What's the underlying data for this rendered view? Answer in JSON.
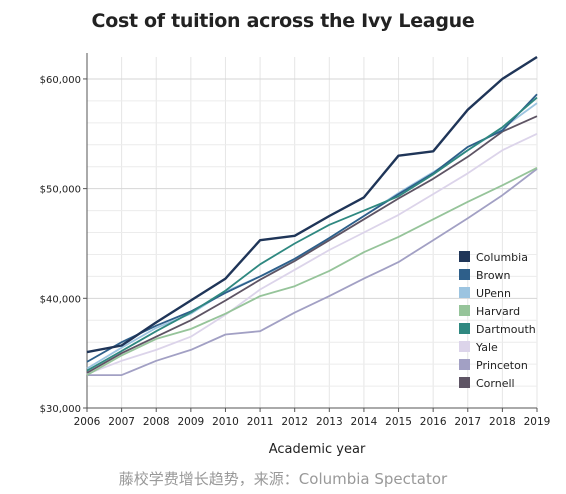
{
  "chart_data": {
    "type": "line",
    "title": "Cost of tuition across the Ivy League",
    "xlabel": "Academic year",
    "ylabel": "",
    "x": [
      2006,
      2007,
      2008,
      2009,
      2010,
      2011,
      2012,
      2013,
      2014,
      2015,
      2016,
      2017,
      2018,
      2019
    ],
    "xlim": [
      2006,
      2019
    ],
    "ylim": [
      30000,
      62000
    ],
    "yticks": [
      30000,
      40000,
      50000,
      60000
    ],
    "ytick_labels": [
      "$30,000",
      "$40,000",
      "$50,000",
      "$60,000"
    ],
    "grid": true,
    "legend_position": "right-center",
    "series": [
      {
        "name": "Columbia",
        "color": "#1f3558",
        "values": [
          35100,
          35700,
          37800,
          39800,
          41800,
          45300,
          45700,
          47500,
          49200,
          53000,
          53400,
          57200,
          60000,
          62000
        ]
      },
      {
        "name": "Brown",
        "color": "#2e5f8a",
        "values": [
          34200,
          36000,
          37500,
          38800,
          40500,
          42000,
          43600,
          45500,
          47500,
          49500,
          51400,
          53800,
          55300,
          58600
        ]
      },
      {
        "name": "UPenn",
        "color": "#9cc4e0",
        "values": [
          33600,
          35500,
          37300,
          38600,
          40600,
          42000,
          43400,
          45500,
          47500,
          49600,
          51500,
          53500,
          55500,
          57800
        ]
      },
      {
        "name": "Harvard",
        "color": "#96c49a",
        "values": [
          33000,
          34800,
          36300,
          37200,
          38600,
          40200,
          41100,
          42500,
          44200,
          45600,
          47200,
          48800,
          50300,
          51900
        ]
      },
      {
        "name": "Dartmouth",
        "color": "#2f8880",
        "values": [
          33400,
          35200,
          37000,
          38700,
          40700,
          43100,
          45000,
          46700,
          48000,
          49300,
          51300,
          53500,
          55600,
          58300
        ]
      },
      {
        "name": "Yale",
        "color": "#dcd4ea",
        "values": [
          33100,
          34300,
          35300,
          36500,
          38500,
          40800,
          42600,
          44400,
          46000,
          47600,
          49500,
          51400,
          53500,
          55000
        ]
      },
      {
        "name": "Princeton",
        "color": "#a2a0c4",
        "values": [
          33000,
          33000,
          34300,
          35300,
          36700,
          37000,
          38700,
          40200,
          41800,
          43300,
          45300,
          47300,
          49400,
          51800
        ]
      },
      {
        "name": "Cornell",
        "color": "#5e5464",
        "values": [
          33200,
          35000,
          36500,
          38000,
          39800,
          41700,
          43400,
          45300,
          47200,
          49100,
          50900,
          52900,
          55200,
          56600
        ]
      }
    ]
  },
  "caption": "藤校学费增长趋势，来源：Columbia Spectator"
}
